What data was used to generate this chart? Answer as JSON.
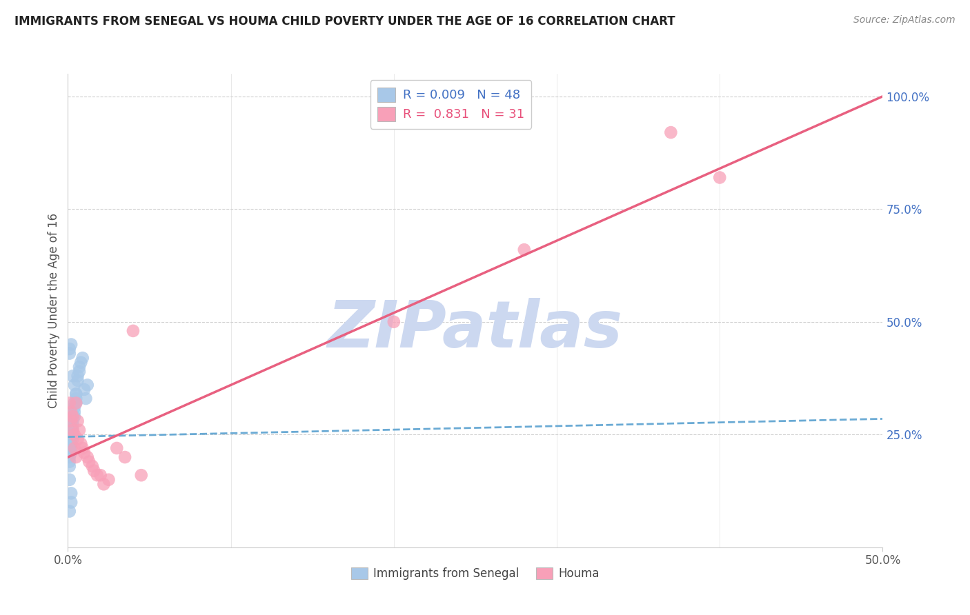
{
  "title": "IMMIGRANTS FROM SENEGAL VS HOUMA CHILD POVERTY UNDER THE AGE OF 16 CORRELATION CHART",
  "source": "Source: ZipAtlas.com",
  "ylabel": "Child Poverty Under the Age of 16",
  "xlim": [
    0.0,
    0.5
  ],
  "ylim": [
    0.0,
    1.05
  ],
  "xticks": [
    0.0,
    0.5
  ],
  "xticklabels": [
    "0.0%",
    "50.0%"
  ],
  "yticks_right": [
    0.25,
    0.5,
    0.75,
    1.0
  ],
  "yticklabels_right": [
    "25.0%",
    "50.0%",
    "75.0%",
    "100.0%"
  ],
  "blue_color": "#a8c8e8",
  "pink_color": "#f8a0b8",
  "blue_line_color": "#6aaad4",
  "pink_line_color": "#e86080",
  "legend_blue_r": "0.009",
  "legend_blue_n": "48",
  "legend_pink_r": "0.831",
  "legend_pink_n": "31",
  "legend_label_blue": "Immigrants from Senegal",
  "legend_label_pink": "Houma",
  "watermark": "ZIPatlas",
  "watermark_color": "#ccd8f0",
  "grid_color": "#d0d0d0",
  "blue_scatter_x": [
    0.001,
    0.001,
    0.001,
    0.001,
    0.001,
    0.001,
    0.001,
    0.001,
    0.002,
    0.002,
    0.002,
    0.002,
    0.002,
    0.002,
    0.002,
    0.002,
    0.003,
    0.003,
    0.003,
    0.003,
    0.003,
    0.003,
    0.004,
    0.004,
    0.004,
    0.004,
    0.005,
    0.005,
    0.005,
    0.006,
    0.006,
    0.007,
    0.007,
    0.008,
    0.009,
    0.01,
    0.011,
    0.012,
    0.001,
    0.001,
    0.002,
    0.002,
    0.001,
    0.001,
    0.002,
    0.003,
    0.004,
    0.005
  ],
  "blue_scatter_y": [
    0.22,
    0.23,
    0.24,
    0.25,
    0.26,
    0.2,
    0.19,
    0.18,
    0.25,
    0.26,
    0.27,
    0.28,
    0.24,
    0.23,
    0.22,
    0.21,
    0.28,
    0.29,
    0.27,
    0.26,
    0.25,
    0.24,
    0.3,
    0.32,
    0.31,
    0.29,
    0.34,
    0.33,
    0.32,
    0.38,
    0.37,
    0.4,
    0.39,
    0.41,
    0.42,
    0.35,
    0.33,
    0.36,
    0.15,
    0.08,
    0.1,
    0.12,
    0.44,
    0.43,
    0.45,
    0.38,
    0.36,
    0.34
  ],
  "pink_scatter_x": [
    0.001,
    0.002,
    0.002,
    0.003,
    0.003,
    0.004,
    0.004,
    0.005,
    0.005,
    0.006,
    0.006,
    0.007,
    0.008,
    0.009,
    0.01,
    0.012,
    0.013,
    0.015,
    0.016,
    0.018,
    0.02,
    0.022,
    0.025,
    0.03,
    0.035,
    0.04,
    0.045,
    0.37,
    0.4,
    0.28,
    0.2
  ],
  "pink_scatter_y": [
    0.32,
    0.28,
    0.3,
    0.26,
    0.29,
    0.25,
    0.22,
    0.32,
    0.2,
    0.28,
    0.24,
    0.26,
    0.23,
    0.22,
    0.21,
    0.2,
    0.19,
    0.18,
    0.17,
    0.16,
    0.16,
    0.14,
    0.15,
    0.22,
    0.2,
    0.48,
    0.16,
    0.92,
    0.82,
    0.66,
    0.5
  ],
  "blue_trendline_x": [
    0.0,
    0.5
  ],
  "blue_trendline_y": [
    0.245,
    0.285
  ],
  "pink_trendline_x": [
    0.0,
    0.5
  ],
  "pink_trendline_y": [
    0.2,
    1.0
  ],
  "title_color": "#222222",
  "source_color": "#888888",
  "tick_color": "#555555",
  "right_tick_color": "#4472c4",
  "legend_r_blue_color": "#4472c4",
  "legend_r_pink_color": "#e8507a"
}
